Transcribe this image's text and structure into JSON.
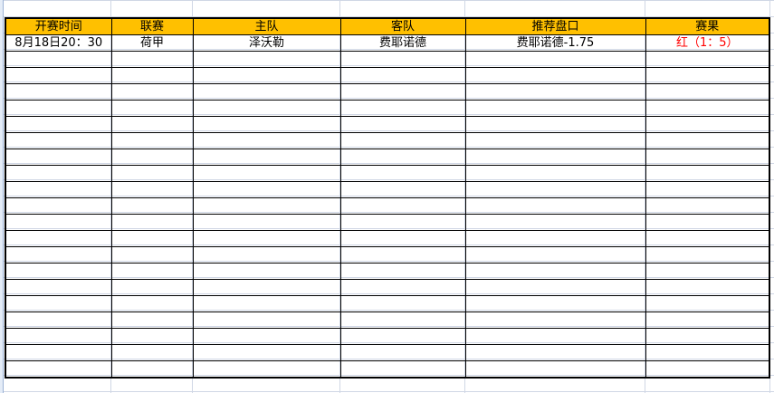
{
  "headers": [
    "开赛时间",
    "联赛",
    "主队",
    "客队",
    "推荐盘口",
    "赛果"
  ],
  "rows": [
    {
      "time": "8月18日20：30",
      "league": "荷甲",
      "home": "泽沃勒",
      "away": "费耶诺德",
      "pick": "费耶诺德-1.75",
      "result": "红（1：5）"
    }
  ],
  "empty_rows": 20,
  "colors": {
    "header_bg": "#ffc000",
    "result_text": "#ff0000"
  }
}
